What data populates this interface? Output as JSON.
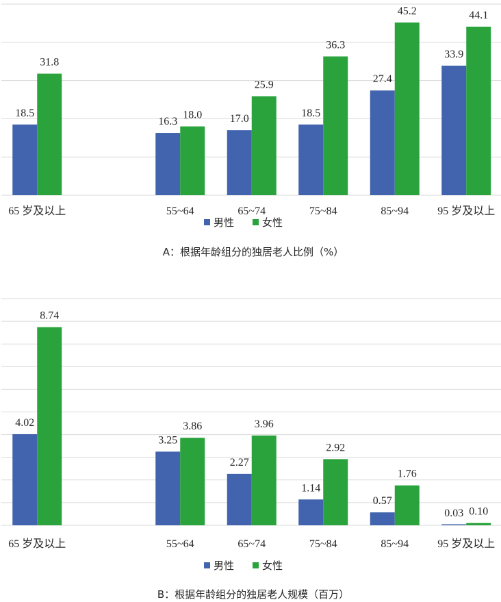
{
  "colors": {
    "male": "#4264ae",
    "female": "#2ba33d"
  },
  "chart_data": [
    {
      "type": "bar",
      "caption": "A：根据年龄组分的独居老人比例（%）",
      "categories": [
        "65 岁及以上",
        "",
        "55~64",
        "65~74",
        "75~84",
        "85~94",
        "95 岁及以上"
      ],
      "series": [
        {
          "name": "男性",
          "values": [
            18.5,
            null,
            16.3,
            17.0,
            18.5,
            27.4,
            33.9
          ],
          "labels": [
            "18.5",
            "",
            "16.3",
            "17.0",
            "18.5",
            "27.4",
            "33.9"
          ]
        },
        {
          "name": "女性",
          "values": [
            31.8,
            null,
            18.0,
            25.9,
            36.3,
            45.2,
            44.1
          ],
          "labels": [
            "31.8",
            "",
            "18.0",
            "25.9",
            "36.3",
            "45.2",
            "44.1"
          ]
        }
      ],
      "ylim": [
        0,
        50
      ],
      "grid": true,
      "legend": "bottom"
    },
    {
      "type": "bar",
      "caption": "B：根据年龄组分的独居老人规模（百万）",
      "categories": [
        "65 岁及以上",
        "",
        "55~64",
        "65~74",
        "75~84",
        "85~94",
        "95 岁及以上"
      ],
      "series": [
        {
          "name": "男性",
          "values": [
            4.02,
            null,
            3.25,
            2.27,
            1.14,
            0.57,
            0.03
          ],
          "labels": [
            "4.02",
            "",
            "3.25",
            "2.27",
            "1.14",
            "0.57",
            "0.03"
          ]
        },
        {
          "name": "女性",
          "values": [
            8.74,
            null,
            3.86,
            3.96,
            2.92,
            1.76,
            0.1
          ],
          "labels": [
            "8.74",
            "",
            "3.86",
            "3.96",
            "2.92",
            "1.76",
            "0.10"
          ]
        }
      ],
      "ylim": [
        0,
        10
      ],
      "grid": true,
      "legend": "bottom"
    }
  ]
}
